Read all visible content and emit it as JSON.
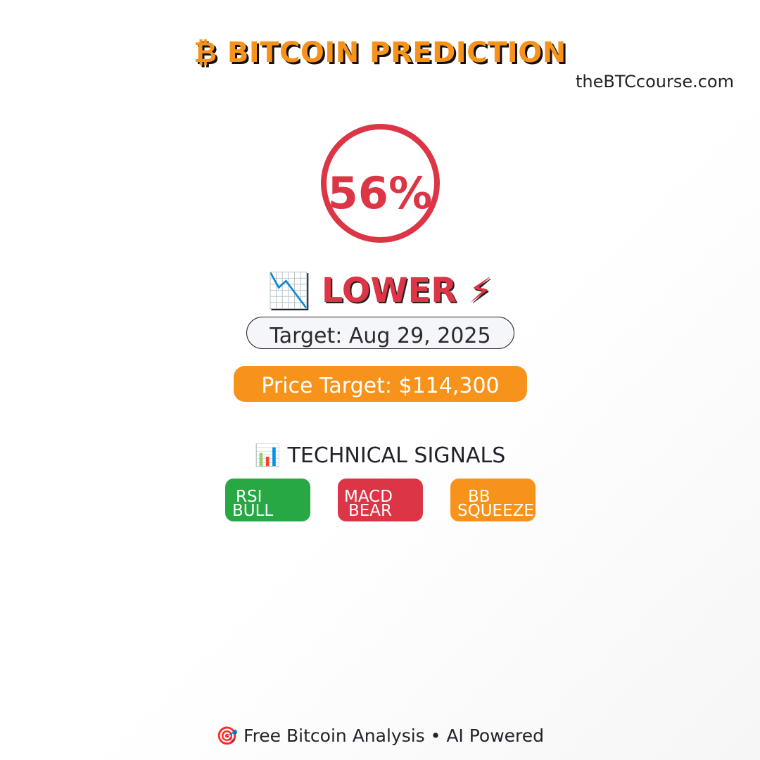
{
  "header": {
    "icon": "bitcoin-icon",
    "title": "₿ BITCOIN PREDICTION",
    "site": "theBTCcourse.com"
  },
  "prediction": {
    "confidence": "56%",
    "confidence_value": 56,
    "direction": "📉 LOWER ⚡",
    "target_date": "Target: Aug 29, 2025",
    "price_target": "Price Target: $114,300"
  },
  "signals": {
    "heading": "📊 TECHNICAL SIGNALS",
    "items": [
      {
        "name": "RSI",
        "state": "BULL",
        "color": "#28a745"
      },
      {
        "name": "MACD",
        "state": "BEAR",
        "color": "#dc3545"
      },
      {
        "name": "BB",
        "state": "SQUEEZE",
        "color": "#f7931a"
      }
    ]
  },
  "footer": {
    "text": "🎯 Free Bitcoin Analysis • AI Powered"
  },
  "colors": {
    "accent": "#f7931a",
    "bearish": "#dc3545",
    "bullish": "#28a745",
    "text": "#22222a"
  }
}
